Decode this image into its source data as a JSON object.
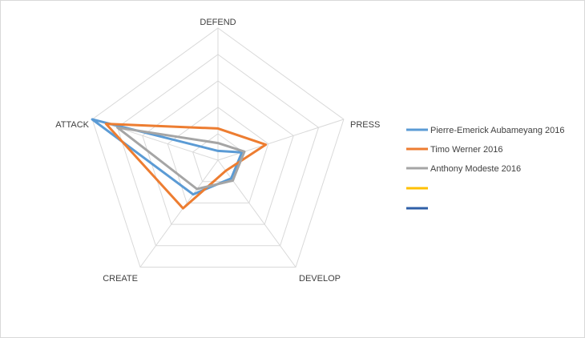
{
  "chart_data": {
    "type": "radar",
    "title": "",
    "axes": [
      "DEFEND",
      "PRESS",
      "DEVELOP",
      "CREATE",
      "ATTACK"
    ],
    "rmax": 100,
    "grid_levels": [
      20,
      40,
      60,
      80,
      100
    ],
    "legend_position": "right",
    "series": [
      {
        "name": "Pierre-Emerick Aubameyang 2016",
        "color": "#5b9bd5",
        "values": [
          7,
          19,
          17,
          32,
          100
        ]
      },
      {
        "name": "Timo Werner 2016",
        "color": "#ed7d31",
        "values": [
          24,
          38,
          10,
          45,
          89
        ]
      },
      {
        "name": "Anthony Modeste 2016",
        "color": "#a5a5a5",
        "values": [
          13,
          21,
          19,
          27,
          80
        ]
      },
      {
        "name": "",
        "color": "#ffc000",
        "values": []
      },
      {
        "name": "",
        "color": "#2f5fa8",
        "values": []
      }
    ]
  }
}
